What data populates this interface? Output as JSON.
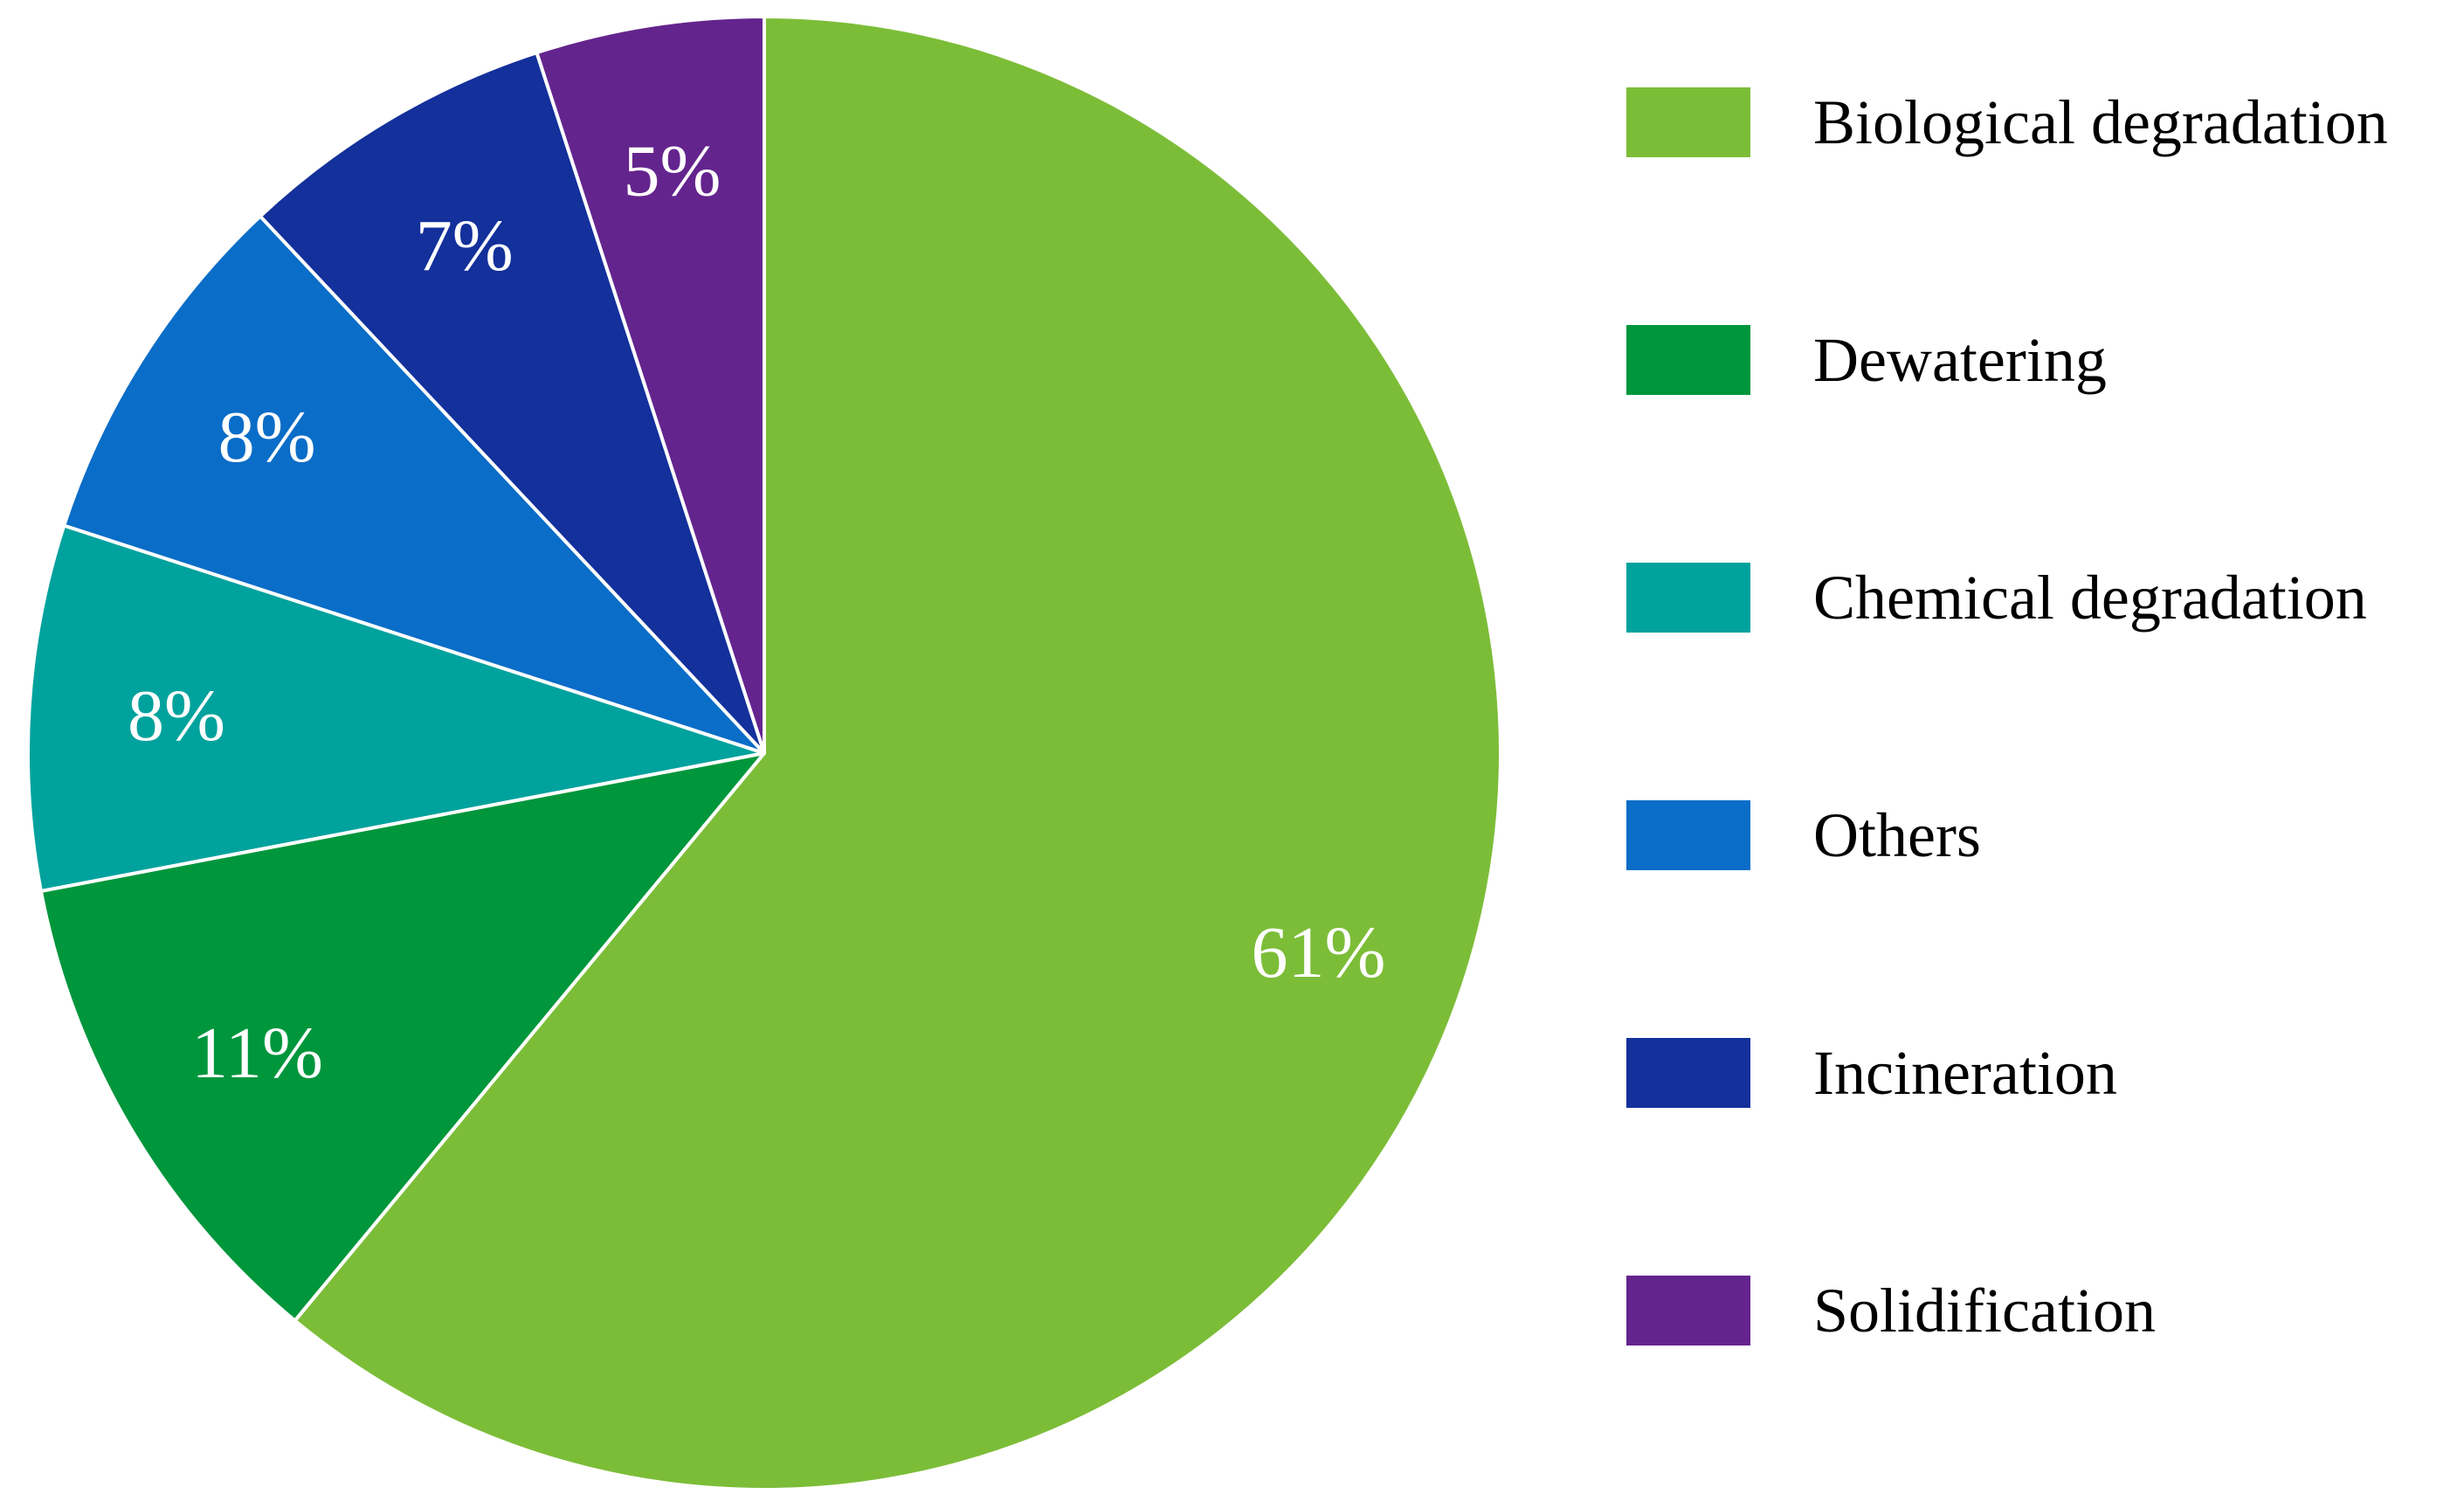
{
  "chart_data": {
    "type": "pie",
    "title": "",
    "start_angle_deg": 0,
    "direction": "clockwise",
    "legend_position": "right",
    "slices": [
      {
        "name": "Biological degradation",
        "value": 61,
        "label": "61%",
        "color": "#7cbd38"
      },
      {
        "name": "Dewatering",
        "value": 11,
        "label": "11%",
        "color": "#00963c"
      },
      {
        "name": "Chemical degradation",
        "value": 8,
        "label": "8%",
        "color": "#00a29d"
      },
      {
        "name": "Others",
        "value": 8,
        "label": "8%",
        "color": "#0a6dc7"
      },
      {
        "name": "Incineration",
        "value": 7,
        "label": "7%",
        "color": "#13309b"
      },
      {
        "name": "Solidification",
        "value": 5,
        "label": "5%",
        "color": "#64248e"
      }
    ]
  }
}
